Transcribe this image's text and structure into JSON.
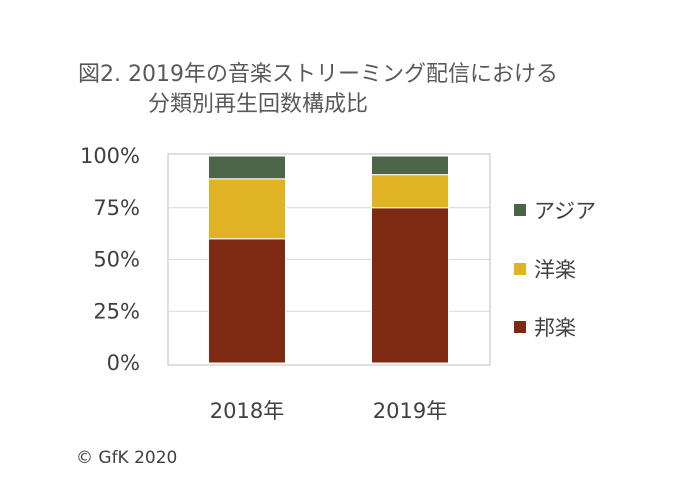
{
  "title": {
    "line1": "図2. 2019年の音楽ストリーミング配信における",
    "line2": "分類別再生回数構成比"
  },
  "credit": "© GfK 2020",
  "colors": {
    "asia": "#4c6448",
    "western": "#e0b325",
    "japanese": "#7e2a12",
    "grid": "#d9d9d9",
    "frame": "#bfbfbf",
    "text": "#404040"
  },
  "chart_data": {
    "type": "bar",
    "stacked": true,
    "categories": [
      "2018年",
      "2019年"
    ],
    "series": [
      {
        "name": "邦楽",
        "key": "japanese",
        "values": [
          60,
          75
        ]
      },
      {
        "name": "洋楽",
        "key": "western",
        "values": [
          29,
          16
        ]
      },
      {
        "name": "アジア",
        "key": "asia",
        "values": [
          11,
          9
        ]
      }
    ],
    "yticks": [
      "0%",
      "25%",
      "50%",
      "75%",
      "100%"
    ],
    "ylim": [
      0,
      100
    ],
    "grid": true,
    "legend_position": "right",
    "legend_order": [
      "アジア",
      "洋楽",
      "邦楽"
    ]
  }
}
